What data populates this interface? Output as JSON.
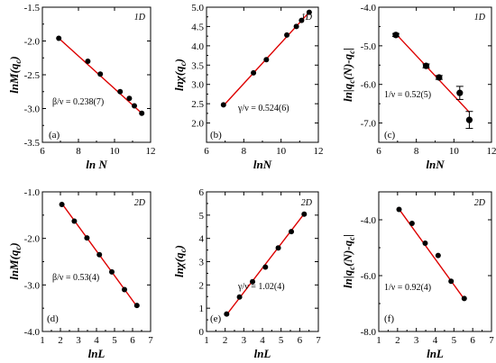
{
  "colors": {
    "fit_line": "#dd0000",
    "marker": "#000000",
    "axis": "#000000"
  },
  "chart_data": [
    {
      "type": "scatter",
      "panel_label": "(a)",
      "corner_label": "1D",
      "xlabel": "ln N",
      "ylabel_main": "lnM(q",
      "ylabel_sub": "c",
      "ylabel_end": ")",
      "xlim": [
        6,
        12
      ],
      "ylim": [
        -3.5,
        -1.5
      ],
      "xticks": [
        "6",
        "8",
        "10",
        "12"
      ],
      "xtick_values": [
        6,
        8,
        10,
        12
      ],
      "yticks": [
        "-3.5",
        "-3.0",
        "-2.5",
        "-2.0",
        "-1.5"
      ],
      "ytick_values": [
        -3.5,
        -3.0,
        -2.5,
        -2.0,
        -1.5
      ],
      "annotation": "β/ν = 0.238(7)",
      "points": [
        {
          "x": 6.91,
          "y": -1.96
        },
        {
          "x": 8.52,
          "y": -2.3
        },
        {
          "x": 9.21,
          "y": -2.49
        },
        {
          "x": 10.31,
          "y": -2.75
        },
        {
          "x": 10.82,
          "y": -2.85
        },
        {
          "x": 11.1,
          "y": -2.96
        },
        {
          "x": 11.51,
          "y": -3.07
        }
      ],
      "fit": [
        [
          6.91,
          -1.96
        ],
        [
          11.51,
          -3.07
        ]
      ]
    },
    {
      "type": "scatter",
      "panel_label": "(b)",
      "corner_label": "1D",
      "xlabel": "lnN",
      "ylabel_main": "lnχ(q",
      "ylabel_sub": "c",
      "ylabel_end": ")",
      "xlim": [
        6,
        12
      ],
      "ylim": [
        1.5,
        5.0
      ],
      "xticks": [
        "6",
        "8",
        "10",
        "12"
      ],
      "xtick_values": [
        6,
        8,
        10,
        12
      ],
      "yticks": [
        "2.0",
        "2.5",
        "3.0",
        "3.5",
        "4.0",
        "4.5",
        "5.0"
      ],
      "ytick_values": [
        2.0,
        2.5,
        3.0,
        3.5,
        4.0,
        4.5,
        5.0
      ],
      "annotation": "γ/ν = 0.524(6)",
      "points": [
        {
          "x": 6.91,
          "y": 2.47
        },
        {
          "x": 8.52,
          "y": 3.3
        },
        {
          "x": 9.21,
          "y": 3.64
        },
        {
          "x": 10.31,
          "y": 4.28
        },
        {
          "x": 10.82,
          "y": 4.5
        },
        {
          "x": 11.1,
          "y": 4.66
        },
        {
          "x": 11.51,
          "y": 4.87
        }
      ],
      "fit": [
        [
          6.91,
          2.45
        ],
        [
          11.51,
          4.87
        ]
      ]
    },
    {
      "type": "scatter",
      "panel_label": "(c)",
      "corner_label": "1D",
      "xlabel": "lnN",
      "ylabel_main": "ln|q",
      "ylabel_sub": "c",
      "ylabel_end": "(N)-q",
      "ylabel_sub2": "c",
      "ylabel_tail": "|",
      "xlim": [
        6,
        12
      ],
      "ylim": [
        -7.5,
        -4.0
      ],
      "xticks": [
        "6",
        "8",
        "10",
        "12"
      ],
      "xtick_values": [
        6,
        8,
        10,
        12
      ],
      "yticks": [
        "-7.0",
        "-6.0",
        "-5.0",
        "-4.0"
      ],
      "ytick_values": [
        -7.0,
        -6.0,
        -5.0,
        -4.0
      ],
      "annotation": "1/ν = 0.52(5)",
      "points": [
        {
          "x": 6.91,
          "y": -4.72,
          "err": 0.04
        },
        {
          "x": 8.52,
          "y": -5.52,
          "err": 0.05
        },
        {
          "x": 9.21,
          "y": -5.82,
          "err": 0.05
        },
        {
          "x": 10.31,
          "y": -6.22,
          "err": 0.17
        },
        {
          "x": 10.82,
          "y": -6.92,
          "err": 0.22
        }
      ],
      "fit": [
        [
          6.91,
          -4.69
        ],
        [
          10.82,
          -6.72
        ]
      ]
    },
    {
      "type": "scatter",
      "panel_label": "(d)",
      "corner_label": "2D",
      "xlabel": "lnL",
      "ylabel_main": "lnM(q",
      "ylabel_sub": "c",
      "ylabel_end": ")",
      "xlim": [
        1,
        7
      ],
      "ylim": [
        -4.0,
        -1.0
      ],
      "xticks": [
        "1",
        "2",
        "3",
        "4",
        "5",
        "6",
        "7"
      ],
      "xtick_values": [
        1,
        2,
        3,
        4,
        5,
        6,
        7
      ],
      "yticks": [
        "-4.0",
        "-3.0",
        "-2.0",
        "-1.0"
      ],
      "ytick_values": [
        -4.0,
        -3.0,
        -2.0,
        -1.0
      ],
      "annotation": "β/ν = 0.53(4)",
      "points": [
        {
          "x": 2.08,
          "y": -1.27
        },
        {
          "x": 2.77,
          "y": -1.63
        },
        {
          "x": 3.47,
          "y": -1.99
        },
        {
          "x": 4.16,
          "y": -2.35
        },
        {
          "x": 4.85,
          "y": -2.72
        },
        {
          "x": 5.55,
          "y": -3.1
        },
        {
          "x": 6.24,
          "y": -3.44
        }
      ],
      "fit": [
        [
          2.08,
          -1.25
        ],
        [
          6.24,
          -3.46
        ]
      ]
    },
    {
      "type": "scatter",
      "panel_label": "(e)",
      "corner_label": "2D",
      "xlabel": "lnL",
      "ylabel_main": "lnχ(q",
      "ylabel_sub": "c",
      "ylabel_end": ")",
      "xlim": [
        1,
        7
      ],
      "ylim": [
        0.0,
        6.0
      ],
      "xticks": [
        "1",
        "2",
        "3",
        "4",
        "5",
        "6",
        "7"
      ],
      "xtick_values": [
        1,
        2,
        3,
        4,
        5,
        6,
        7
      ],
      "yticks": [
        "0",
        "1",
        "2",
        "3",
        "4",
        "5",
        "6"
      ],
      "ytick_values": [
        0,
        1,
        2,
        3,
        4,
        5,
        6
      ],
      "annotation": "γ/ν = 1.02(4)",
      "points": [
        {
          "x": 2.08,
          "y": 0.75
        },
        {
          "x": 2.77,
          "y": 1.48
        },
        {
          "x": 3.47,
          "y": 2.14
        },
        {
          "x": 4.16,
          "y": 2.77
        },
        {
          "x": 4.85,
          "y": 3.59
        },
        {
          "x": 5.55,
          "y": 4.29
        },
        {
          "x": 6.24,
          "y": 5.04
        }
      ],
      "fit": [
        [
          2.08,
          0.72
        ],
        [
          6.24,
          5.06
        ]
      ]
    },
    {
      "type": "scatter",
      "panel_label": "(f)",
      "corner_label": "2D",
      "xlabel": "lnL",
      "ylabel_main": "ln|q",
      "ylabel_sub": "c",
      "ylabel_end": "(N)-q",
      "ylabel_sub2": "c",
      "ylabel_tail": "|",
      "xlim": [
        1,
        7
      ],
      "ylim": [
        -8.0,
        -3.0
      ],
      "xticks": [
        "1",
        "2",
        "3",
        "4",
        "5",
        "6",
        "7"
      ],
      "xtick_values": [
        1,
        2,
        3,
        4,
        5,
        6,
        7
      ],
      "yticks": [
        "-8.0",
        "-6.0",
        "-4.0"
      ],
      "ytick_values": [
        -8.0,
        -6.0,
        -4.0
      ],
      "annotation": "1/ν = 0.92(4)",
      "points": [
        {
          "x": 2.08,
          "y": -3.63
        },
        {
          "x": 2.77,
          "y": -4.13
        },
        {
          "x": 3.47,
          "y": -4.84
        },
        {
          "x": 4.16,
          "y": -5.28
        },
        {
          "x": 4.85,
          "y": -6.2
        },
        {
          "x": 5.55,
          "y": -6.82
        }
      ],
      "fit": [
        [
          2.08,
          -3.62
        ],
        [
          5.55,
          -6.84
        ]
      ]
    }
  ]
}
